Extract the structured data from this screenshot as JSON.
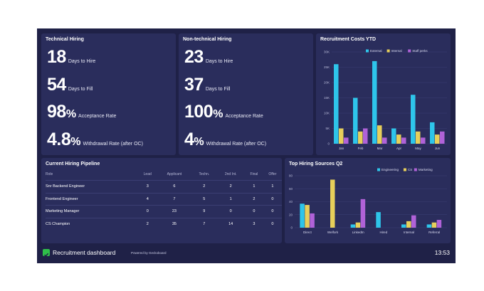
{
  "technical": {
    "title": "Technical Hiring",
    "metrics": [
      {
        "value": "18",
        "suffix": "",
        "label": "Days to Hire"
      },
      {
        "value": "54",
        "suffix": "",
        "label": "Days to Fill"
      },
      {
        "value": "98",
        "suffix": "%",
        "label": "Acceptance Rate"
      },
      {
        "value": "4.8",
        "suffix": "%",
        "label": "Withdrawal Rate (after OC)"
      }
    ]
  },
  "nontechnical": {
    "title": "Non-technical Hiring",
    "metrics": [
      {
        "value": "23",
        "suffix": "",
        "label": "Days to Hire"
      },
      {
        "value": "37",
        "suffix": "",
        "label": "Days to Fill"
      },
      {
        "value": "100",
        "suffix": "%",
        "label": "Acceptance Rate"
      },
      {
        "value": "4",
        "suffix": "%",
        "label": "Withdrawal Rate (after OC)"
      }
    ]
  },
  "pipeline": {
    "title": "Current Hiring Pipeline",
    "columns": [
      "Role",
      "Lead",
      "Applicant",
      "Techn.",
      "2nd Int.",
      "Final",
      "Offer"
    ],
    "rows": [
      [
        "Snr Backend Engineer",
        "3",
        "6",
        "2",
        "2",
        "1",
        "1"
      ],
      [
        "Frontend Engineer",
        "4",
        "7",
        "5",
        "1",
        "2",
        "0"
      ],
      [
        "Marketing Manager",
        "0",
        "23",
        "9",
        "0",
        "0",
        "0"
      ],
      [
        "CS Champion",
        "2",
        "35",
        "7",
        "14",
        "3",
        "0"
      ]
    ]
  },
  "footer": {
    "title": "Recruitment dashboard",
    "powered": "Powered by Geckoboard",
    "time": "13:53"
  },
  "colors": {
    "engineering": "#2ec5ea",
    "cs": "#e7cf5a",
    "marketing": "#b062d8",
    "background": "#1f2147",
    "panel": "#2a2d5c"
  },
  "chart_data": [
    {
      "type": "bar",
      "title": "Recruitment Costs YTD",
      "categories": [
        "Jan",
        "Feb",
        "Mar",
        "Apr",
        "May",
        "Jun"
      ],
      "series": [
        {
          "name": "External",
          "values": [
            26,
            15,
            27,
            5,
            16,
            7
          ]
        },
        {
          "name": "Internal",
          "values": [
            5,
            4,
            6,
            3,
            4,
            3
          ]
        },
        {
          "name": "Staff perks",
          "values": [
            2,
            5,
            2,
            2,
            2,
            4
          ]
        }
      ],
      "yticks": [
        "0",
        "5K",
        "10K",
        "15K",
        "20K",
        "25K",
        "30K"
      ],
      "ylim": [
        0,
        30
      ]
    },
    {
      "type": "bar",
      "title": "Top Hiring Sources Q2",
      "categories": [
        "Direct",
        "Welfork",
        "LinkedIn",
        "Hired",
        "Internal",
        "Referral"
      ],
      "series": [
        {
          "name": "Engineering",
          "values": [
            37,
            0,
            5,
            24,
            5,
            5
          ]
        },
        {
          "name": "CS",
          "values": [
            35,
            74,
            8,
            0,
            10,
            8
          ]
        },
        {
          "name": "Marketing",
          "values": [
            22,
            0,
            44,
            0,
            19,
            12
          ]
        }
      ],
      "yticks": [
        "0",
        "20",
        "40",
        "60",
        "80"
      ],
      "ylim": [
        0,
        80
      ]
    }
  ]
}
